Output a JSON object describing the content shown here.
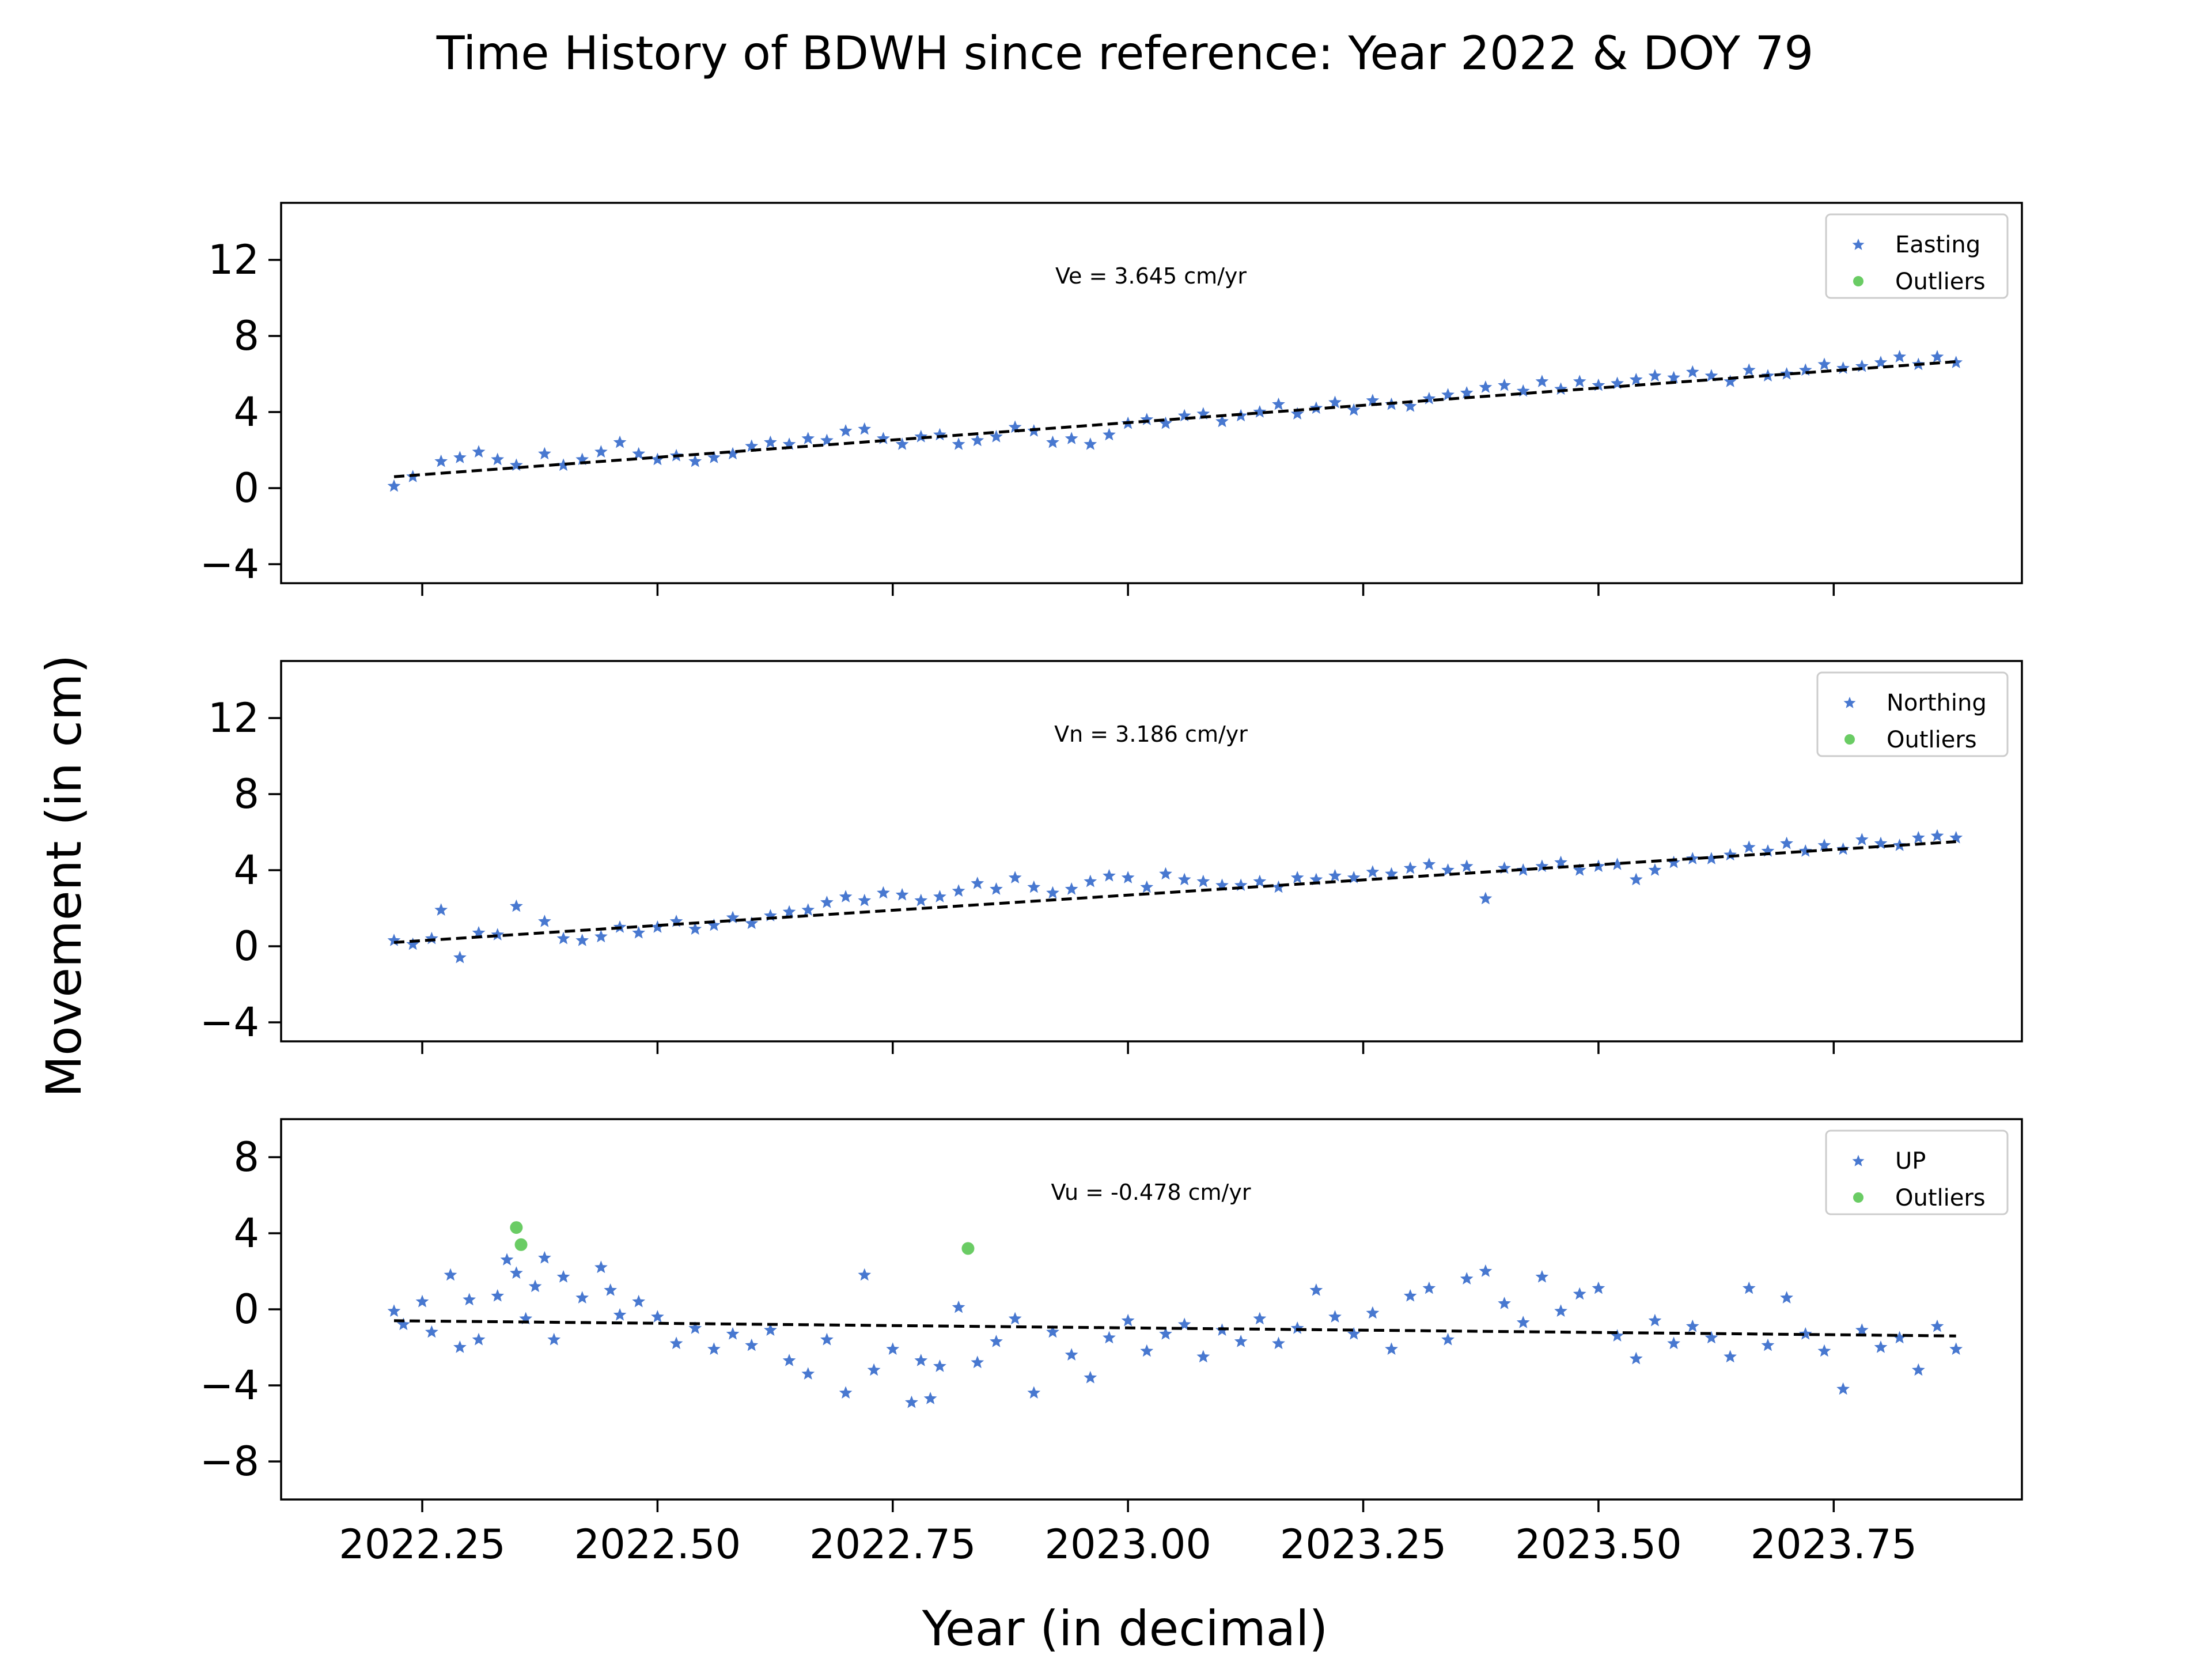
{
  "chart_data": {
    "type": "scatter",
    "title": "Time History of BDWH since reference: Year 2022 & DOY 79",
    "ylabel": "Movement (in cm)",
    "xlabel": "Year (in decimal)",
    "xlim": [
      2022.1,
      2023.95
    ],
    "xticks": [
      2022.25,
      2022.5,
      2022.75,
      2023.0,
      2023.25,
      2023.5,
      2023.75
    ],
    "xtick_labels": [
      "2022.25",
      "2022.50",
      "2022.75",
      "2023.00",
      "2023.25",
      "2023.50",
      "2023.75"
    ],
    "grid": false,
    "colors": {
      "series": "#4878d0",
      "outliers": "#6acc64",
      "trend": "#000000"
    },
    "panels": [
      {
        "name": "easting",
        "ylim": [
          -5,
          15
        ],
        "yticks": [
          -4,
          0,
          4,
          8,
          12
        ],
        "annotation": "Ve =  3.645 cm/yr",
        "legend": [
          "Easting",
          "Outliers"
        ],
        "legend_position": "upper right",
        "trend": {
          "x": [
            2022.22,
            2023.88
          ],
          "y": [
            0.6,
            6.65
          ]
        },
        "series": {
          "name": "Easting",
          "x": [
            2022.22,
            2022.24,
            2022.27,
            2022.29,
            2022.31,
            2022.33,
            2022.35,
            2022.38,
            2022.4,
            2022.42,
            2022.44,
            2022.46,
            2022.48,
            2022.5,
            2022.52,
            2022.54,
            2022.56,
            2022.58,
            2022.6,
            2022.62,
            2022.64,
            2022.66,
            2022.68,
            2022.7,
            2022.72,
            2022.74,
            2022.76,
            2022.78,
            2022.8,
            2022.82,
            2022.84,
            2022.86,
            2022.88,
            2022.9,
            2022.92,
            2022.94,
            2022.96,
            2022.98,
            2023.0,
            2023.02,
            2023.04,
            2023.06,
            2023.08,
            2023.1,
            2023.12,
            2023.14,
            2023.16,
            2023.18,
            2023.2,
            2023.22,
            2023.24,
            2023.26,
            2023.28,
            2023.3,
            2023.32,
            2023.34,
            2023.36,
            2023.38,
            2023.4,
            2023.42,
            2023.44,
            2023.46,
            2023.48,
            2023.5,
            2023.52,
            2023.54,
            2023.56,
            2023.58,
            2023.6,
            2023.62,
            2023.64,
            2023.66,
            2023.68,
            2023.7,
            2023.72,
            2023.74,
            2023.76,
            2023.78,
            2023.8,
            2023.82,
            2023.84,
            2023.86,
            2023.88
          ],
          "y": [
            0.1,
            0.6,
            1.4,
            1.6,
            1.9,
            1.5,
            1.2,
            1.8,
            1.2,
            1.5,
            1.9,
            2.4,
            1.8,
            1.5,
            1.7,
            1.4,
            1.6,
            1.8,
            2.2,
            2.4,
            2.3,
            2.6,
            2.5,
            3.0,
            3.1,
            2.6,
            2.3,
            2.7,
            2.8,
            2.3,
            2.5,
            2.7,
            3.2,
            3.0,
            2.4,
            2.6,
            2.3,
            2.8,
            3.4,
            3.6,
            3.4,
            3.8,
            3.9,
            3.5,
            3.8,
            4.0,
            4.4,
            3.9,
            4.2,
            4.5,
            4.1,
            4.6,
            4.4,
            4.3,
            4.7,
            4.9,
            5.0,
            5.3,
            5.4,
            5.1,
            5.6,
            5.2,
            5.6,
            5.4,
            5.5,
            5.7,
            5.9,
            5.8,
            6.1,
            5.9,
            5.6,
            6.2,
            5.9,
            6.0,
            6.2,
            6.5,
            6.3,
            6.4,
            6.6,
            6.9,
            6.5,
            6.9,
            6.6
          ]
        },
        "outliers": {
          "x": [],
          "y": []
        }
      },
      {
        "name": "northing",
        "ylim": [
          -5,
          15
        ],
        "yticks": [
          -4,
          0,
          4,
          8,
          12
        ],
        "annotation": "Vn =  3.186 cm/yr",
        "legend": [
          "Northing",
          "Outliers"
        ],
        "legend_position": "upper right",
        "trend": {
          "x": [
            2022.22,
            2023.88
          ],
          "y": [
            0.2,
            5.5
          ]
        },
        "series": {
          "name": "Northing",
          "x": [
            2022.22,
            2022.24,
            2022.26,
            2022.27,
            2022.29,
            2022.31,
            2022.33,
            2022.35,
            2022.38,
            2022.4,
            2022.42,
            2022.44,
            2022.46,
            2022.48,
            2022.5,
            2022.52,
            2022.54,
            2022.56,
            2022.58,
            2022.6,
            2022.62,
            2022.64,
            2022.66,
            2022.68,
            2022.7,
            2022.72,
            2022.74,
            2022.76,
            2022.78,
            2022.8,
            2022.82,
            2022.84,
            2022.86,
            2022.88,
            2022.9,
            2022.92,
            2022.94,
            2022.96,
            2022.98,
            2023.0,
            2023.02,
            2023.04,
            2023.06,
            2023.08,
            2023.1,
            2023.12,
            2023.14,
            2023.16,
            2023.18,
            2023.2,
            2023.22,
            2023.24,
            2023.26,
            2023.28,
            2023.3,
            2023.32,
            2023.34,
            2023.36,
            2023.38,
            2023.4,
            2023.42,
            2023.44,
            2023.46,
            2023.48,
            2023.5,
            2023.52,
            2023.54,
            2023.56,
            2023.58,
            2023.6,
            2023.62,
            2023.64,
            2023.66,
            2023.68,
            2023.7,
            2023.72,
            2023.74,
            2023.76,
            2023.78,
            2023.8,
            2023.82,
            2023.84,
            2023.86,
            2023.88
          ],
          "y": [
            0.3,
            0.1,
            0.4,
            1.9,
            -0.6,
            0.7,
            0.6,
            2.1,
            1.3,
            0.4,
            0.3,
            0.5,
            1.0,
            0.7,
            1.0,
            1.3,
            0.9,
            1.1,
            1.5,
            1.2,
            1.6,
            1.8,
            1.9,
            2.3,
            2.6,
            2.4,
            2.8,
            2.7,
            2.4,
            2.6,
            2.9,
            3.3,
            3.0,
            3.6,
            3.1,
            2.8,
            3.0,
            3.4,
            3.7,
            3.6,
            3.1,
            3.8,
            3.5,
            3.4,
            3.2,
            3.2,
            3.4,
            3.1,
            3.6,
            3.5,
            3.7,
            3.6,
            3.9,
            3.8,
            4.1,
            4.3,
            4.0,
            4.2,
            2.5,
            4.1,
            4.0,
            4.2,
            4.4,
            4.0,
            4.2,
            4.3,
            3.5,
            4.0,
            4.4,
            4.6,
            4.6,
            4.8,
            5.2,
            5.0,
            5.4,
            5.0,
            5.3,
            5.1,
            5.6,
            5.4,
            5.3,
            5.7,
            5.8,
            5.7
          ]
        },
        "outliers": {
          "x": [],
          "y": []
        }
      },
      {
        "name": "up",
        "ylim": [
          -10,
          10
        ],
        "yticks": [
          -8,
          -4,
          0,
          4,
          8
        ],
        "annotation": "Vu = -0.478 cm/yr",
        "legend": [
          "UP",
          "Outliers"
        ],
        "legend_position": "upper right",
        "trend": {
          "x": [
            2022.22,
            2023.88
          ],
          "y": [
            -0.6,
            -1.4
          ]
        },
        "series": {
          "name": "UP",
          "x": [
            2022.22,
            2022.23,
            2022.25,
            2022.26,
            2022.28,
            2022.29,
            2022.3,
            2022.31,
            2022.33,
            2022.34,
            2022.35,
            2022.36,
            2022.37,
            2022.38,
            2022.39,
            2022.4,
            2022.42,
            2022.44,
            2022.45,
            2022.46,
            2022.48,
            2022.5,
            2022.52,
            2022.54,
            2022.56,
            2022.58,
            2022.6,
            2022.62,
            2022.64,
            2022.66,
            2022.68,
            2022.7,
            2022.72,
            2022.73,
            2022.75,
            2022.77,
            2022.78,
            2022.79,
            2022.8,
            2022.82,
            2022.84,
            2022.86,
            2022.88,
            2022.9,
            2022.92,
            2022.94,
            2022.96,
            2022.98,
            2023.0,
            2023.02,
            2023.04,
            2023.06,
            2023.08,
            2023.1,
            2023.12,
            2023.14,
            2023.16,
            2023.18,
            2023.2,
            2023.22,
            2023.24,
            2023.26,
            2023.28,
            2023.3,
            2023.32,
            2023.34,
            2023.36,
            2023.38,
            2023.4,
            2023.42,
            2023.44,
            2023.46,
            2023.48,
            2023.5,
            2023.52,
            2023.54,
            2023.56,
            2023.58,
            2023.6,
            2023.62,
            2023.64,
            2023.66,
            2023.68,
            2023.7,
            2023.72,
            2023.74,
            2023.76,
            2023.78,
            2023.8,
            2023.82,
            2023.84,
            2023.86,
            2023.88
          ],
          "y": [
            -0.1,
            -0.8,
            0.4,
            -1.2,
            1.8,
            -2.0,
            0.5,
            -1.6,
            0.7,
            2.6,
            1.9,
            -0.5,
            1.2,
            2.7,
            -1.6,
            1.7,
            0.6,
            2.2,
            1.0,
            -0.3,
            0.4,
            -0.4,
            -1.8,
            -1.0,
            -2.1,
            -1.3,
            -1.9,
            -1.1,
            -2.7,
            -3.4,
            -1.6,
            -4.4,
            1.8,
            -3.2,
            -2.1,
            -4.9,
            -2.7,
            -4.7,
            -3.0,
            0.1,
            -2.8,
            -1.7,
            -0.5,
            -4.4,
            -1.2,
            -2.4,
            -3.6,
            -1.5,
            -0.6,
            -2.2,
            -1.3,
            -0.8,
            -2.5,
            -1.1,
            -1.7,
            -0.5,
            -1.8,
            -1.0,
            1.0,
            -0.4,
            -1.3,
            -0.2,
            -2.1,
            0.7,
            1.1,
            -1.6,
            1.6,
            2.0,
            0.3,
            -0.7,
            1.7,
            -0.1,
            0.8,
            1.1,
            -1.4,
            -2.6,
            -0.6,
            -1.8,
            -0.9,
            -1.5,
            -2.5,
            1.1,
            -1.9,
            0.6,
            -1.3,
            -2.2,
            -4.2,
            -1.1,
            -2.0,
            -1.5,
            -3.2,
            -0.9,
            -2.1
          ]
        },
        "outliers": {
          "x": [
            2022.35,
            2022.355,
            2022.83
          ],
          "y": [
            4.3,
            3.4,
            3.2
          ]
        }
      }
    ]
  }
}
